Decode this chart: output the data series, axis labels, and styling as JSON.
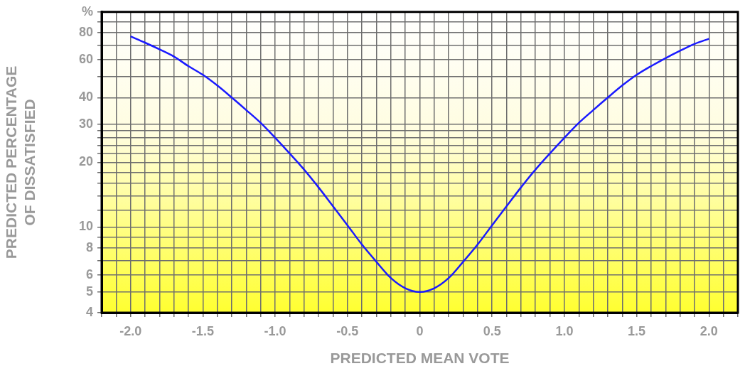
{
  "chart_data": {
    "type": "line",
    "xlabel": "PREDICTED MEAN VOTE",
    "ylabel": "PREDICTED PERCENTAGE\nOF DISSATISFIED",
    "x": [
      -2.0,
      -1.9,
      -1.8,
      -1.7,
      -1.6,
      -1.5,
      -1.4,
      -1.3,
      -1.2,
      -1.1,
      -1.0,
      -0.9,
      -0.8,
      -0.7,
      -0.6,
      -0.5,
      -0.4,
      -0.3,
      -0.2,
      -0.1,
      0,
      0.1,
      0.2,
      0.3,
      0.4,
      0.5,
      0.6,
      0.7,
      0.8,
      0.9,
      1.0,
      1.1,
      1.2,
      1.3,
      1.4,
      1.5,
      1.6,
      1.7,
      1.8,
      1.9,
      2.0
    ],
    "series": [
      {
        "color": "#1a1aff",
        "values": [
          77,
          72,
          67,
          62,
          56,
          51,
          45.5,
          40,
          35,
          30.5,
          26,
          22,
          18.5,
          15.3,
          12.5,
          10.2,
          8.3,
          6.9,
          5.8,
          5.2,
          5,
          5.2,
          5.8,
          6.9,
          8.3,
          10.2,
          12.5,
          15.3,
          18.5,
          22,
          26,
          30.5,
          35,
          40,
          45.5,
          51,
          56,
          61,
          66,
          71,
          75
        ]
      }
    ],
    "log": "y",
    "xlim": [
      -2.2,
      2.2
    ],
    "ylim": [
      4,
      100
    ],
    "xticks": [
      {
        "value": -2.2,
        "label": null
      },
      {
        "value": -2.1,
        "label": null
      },
      {
        "value": -2.0,
        "label": "-2.0"
      },
      {
        "value": -1.9,
        "label": null
      },
      {
        "value": -1.8,
        "label": null
      },
      {
        "value": -1.7,
        "label": null
      },
      {
        "value": -1.6,
        "label": null
      },
      {
        "value": -1.5,
        "label": "-1.5"
      },
      {
        "value": -1.4,
        "label": null
      },
      {
        "value": -1.3,
        "label": null
      },
      {
        "value": -1.2,
        "label": null
      },
      {
        "value": -1.1,
        "label": null
      },
      {
        "value": -1.0,
        "label": "-1.0"
      },
      {
        "value": -0.9,
        "label": null
      },
      {
        "value": -0.8,
        "label": null
      },
      {
        "value": -0.7,
        "label": null
      },
      {
        "value": -0.6,
        "label": null
      },
      {
        "value": -0.5,
        "label": "-0.5"
      },
      {
        "value": -0.4,
        "label": null
      },
      {
        "value": -0.3,
        "label": null
      },
      {
        "value": -0.2,
        "label": null
      },
      {
        "value": -0.1,
        "label": null
      },
      0,
      {
        "value": 0.1,
        "label": null
      },
      {
        "value": 0.2,
        "label": null
      },
      {
        "value": 0.3,
        "label": null
      },
      {
        "value": 0.4,
        "label": null
      },
      0.5,
      {
        "value": 0.6,
        "label": null
      },
      {
        "value": 0.7,
        "label": null
      },
      {
        "value": 0.8,
        "label": null
      },
      {
        "value": 0.9,
        "label": null
      },
      {
        "value": 1.0,
        "label": "1.0"
      },
      {
        "value": 1.1,
        "label": null
      },
      {
        "value": 1.2,
        "label": null
      },
      {
        "value": 1.3,
        "label": null
      },
      {
        "value": 1.4,
        "label": null
      },
      1.5,
      {
        "value": 1.6,
        "label": null
      },
      {
        "value": 1.7,
        "label": null
      },
      {
        "value": 1.8,
        "label": null
      },
      {
        "value": 1.9,
        "label": null
      },
      {
        "value": 2.0,
        "label": "2.0"
      },
      {
        "value": 2.1,
        "label": null
      },
      {
        "value": 2.2,
        "label": null
      }
    ],
    "yticks": [
      4,
      5,
      6,
      {
        "value": 7,
        "label": null
      },
      8,
      {
        "value": 9,
        "label": null
      },
      10,
      {
        "value": 12,
        "label": null
      },
      {
        "value": 14,
        "label": null
      },
      {
        "value": 16,
        "label": null
      },
      {
        "value": 18,
        "label": null
      },
      20,
      {
        "value": 22,
        "label": null
      },
      {
        "value": 24,
        "label": null
      },
      {
        "value": 26,
        "label": null
      },
      {
        "value": 28,
        "label": null
      },
      30,
      40,
      {
        "value": 50,
        "label": null
      },
      60,
      {
        "value": 70,
        "label": null
      },
      80,
      {
        "value": 90,
        "label": null
      },
      {
        "value": 100,
        "label": "%"
      }
    ],
    "grid": true,
    "legend": false,
    "marker": "none",
    "line_style": "solid"
  }
}
